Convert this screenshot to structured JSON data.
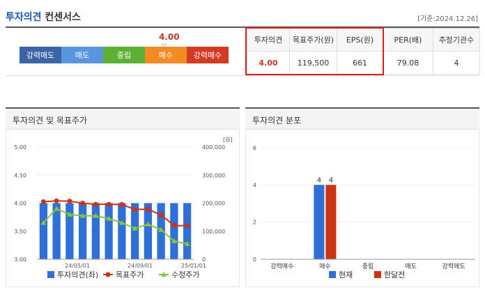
{
  "header": {
    "title_a": "투자의견",
    "title_b": "컨센서스",
    "asof": "[기준:2024.12.26]"
  },
  "scale": {
    "segments": [
      {
        "label": "강력매도",
        "color": "#3a63a8"
      },
      {
        "label": "매도",
        "color": "#5a95e0"
      },
      {
        "label": "중립",
        "color": "#5cb135"
      },
      {
        "label": "매수",
        "color": "#f48b22"
      },
      {
        "label": "강력매수",
        "color": "#d43a22"
      }
    ],
    "current_value": "4.00",
    "marker_glyph": "▽"
  },
  "summary": {
    "headers": [
      "투자의견",
      "목표주가(원)",
      "EPS(원)",
      "PER(배)",
      "추정기관수"
    ],
    "values": [
      "4.00",
      "119,500",
      "661",
      "79.08",
      "4"
    ]
  },
  "left_panel": {
    "title": "투자의견 및 목표주가"
  },
  "right_panel": {
    "title": "투자의견 분포"
  },
  "chart_data": [
    {
      "type": "bar",
      "title": "투자의견 및 목표주가",
      "x_tick_labels": [
        "24/05/01",
        "24/09/01",
        "25/01/01"
      ],
      "y_left_ticks": [
        "5.00",
        "4.50",
        "4.00",
        "3.50",
        "3.00"
      ],
      "ylim_left": [
        3.0,
        5.0
      ],
      "y_right_unit": "[원]",
      "y_right_ticks": [
        "400,000",
        "300,000",
        "200,000",
        "100,000",
        "0"
      ],
      "ylim_right": [
        0,
        400000
      ],
      "legend": {
        "placement": "bottom",
        "items": [
          "투자의견(좌)",
          "목표주가",
          "수정주가"
        ]
      },
      "series": [
        {
          "name": "투자의견(좌)",
          "kind": "bar",
          "color": "#2f6fd8",
          "values": [
            4,
            4,
            4,
            4,
            4,
            4,
            4,
            4,
            4,
            4,
            4,
            4
          ]
        },
        {
          "name": "목표주가",
          "kind": "line",
          "color": "#cc3311",
          "values": [
            205000,
            208000,
            207000,
            200000,
            196000,
            196000,
            195000,
            178000,
            178000,
            158000,
            120000,
            120000
          ]
        },
        {
          "name": "수정주가",
          "kind": "line",
          "color": "#88c53a",
          "values": [
            130000,
            180000,
            160000,
            155000,
            155000,
            145000,
            130000,
            110000,
            125000,
            105000,
            65000,
            55000
          ]
        }
      ]
    },
    {
      "type": "bar",
      "title": "투자의견 분포",
      "categories": [
        "강력매수",
        "매수",
        "중립",
        "매도",
        "강력매도"
      ],
      "ylim": [
        0,
        6
      ],
      "y_ticks": [
        "6",
        "4",
        "2",
        "0"
      ],
      "legend": {
        "placement": "bottom",
        "items": [
          "현재",
          "한달전"
        ]
      },
      "series": [
        {
          "name": "현재",
          "color": "#2f6fd8",
          "values": [
            0,
            4,
            0,
            0,
            0
          ]
        },
        {
          "name": "한달전",
          "color": "#cc3311",
          "values": [
            0,
            4,
            0,
            0,
            0
          ]
        }
      ]
    }
  ]
}
